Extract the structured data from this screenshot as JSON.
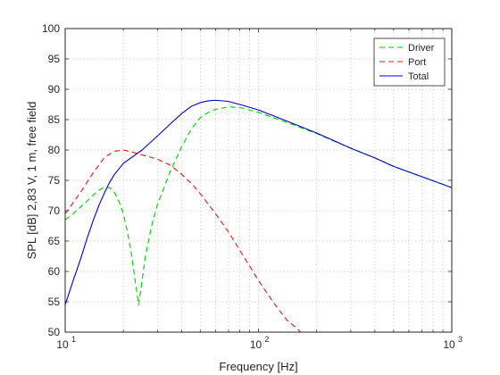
{
  "chart_data": {
    "type": "line",
    "xscale": "log",
    "xlim": [
      10,
      1000
    ],
    "ylim": [
      50,
      100
    ],
    "xlabel": "Frequency [Hz]",
    "ylabel": "SPL [dB] 2,83 V, 1 m, free field",
    "grid": "on (dotted, log minor on x)",
    "legend_position": "top-right",
    "x_ticks": [
      10,
      100,
      1000
    ],
    "x_tick_labels": {
      "base": "10",
      "exponents": [
        "1",
        "2",
        "3"
      ]
    },
    "y_ticks": [
      50,
      55,
      60,
      65,
      70,
      75,
      80,
      85,
      90,
      95,
      100
    ],
    "series": [
      {
        "name": "Driver",
        "color": "#00cc00",
        "style": "dashed",
        "points": [
          [
            10,
            68.5
          ],
          [
            11,
            69.5
          ],
          [
            12,
            70.6
          ],
          [
            13,
            71.6
          ],
          [
            14,
            72.6
          ],
          [
            15,
            73.4
          ],
          [
            16,
            73.9
          ],
          [
            17,
            73.8
          ],
          [
            18,
            73.0
          ],
          [
            19,
            71.5
          ],
          [
            20,
            69.5
          ],
          [
            21,
            66.5
          ],
          [
            22,
            63.0
          ],
          [
            23,
            58.5
          ],
          [
            24,
            54.5
          ],
          [
            25,
            58.5
          ],
          [
            26,
            62.5
          ],
          [
            28,
            67.5
          ],
          [
            30,
            71.0
          ],
          [
            35,
            76.5
          ],
          [
            40,
            80.5
          ],
          [
            45,
            83.5
          ],
          [
            50,
            85.3
          ],
          [
            55,
            86.2
          ],
          [
            60,
            86.7
          ],
          [
            70,
            87.1
          ],
          [
            80,
            87.0
          ],
          [
            100,
            86.2
          ],
          [
            120,
            85.3
          ],
          [
            150,
            84.2
          ],
          [
            200,
            82.7
          ],
          [
            300,
            80.3
          ],
          [
            400,
            78.7
          ],
          [
            500,
            77.3
          ],
          [
            700,
            75.6
          ],
          [
            1000,
            73.8
          ]
        ]
      },
      {
        "name": "Port",
        "color": "#ee1111",
        "style": "dashed",
        "points": [
          [
            10,
            69.5
          ],
          [
            12,
            73.0
          ],
          [
            14,
            76.3
          ],
          [
            16,
            78.8
          ],
          [
            18,
            79.8
          ],
          [
            20,
            80.0
          ],
          [
            22,
            79.7
          ],
          [
            25,
            79.2
          ],
          [
            30,
            78.5
          ],
          [
            35,
            77.5
          ],
          [
            40,
            76.0
          ],
          [
            45,
            74.5
          ],
          [
            50,
            72.8
          ],
          [
            60,
            69.5
          ],
          [
            70,
            66.5
          ],
          [
            80,
            63.5
          ],
          [
            100,
            58.5
          ],
          [
            120,
            54.8
          ],
          [
            140,
            52.0
          ],
          [
            160,
            50.5
          ],
          [
            170,
            49.5
          ]
        ]
      },
      {
        "name": "Total",
        "color": "#0000cc",
        "style": "solid",
        "points": [
          [
            10,
            54.5
          ],
          [
            11,
            58.5
          ],
          [
            12,
            62.0
          ],
          [
            13,
            65.5
          ],
          [
            14,
            68.5
          ],
          [
            15,
            71.0
          ],
          [
            16,
            73.0
          ],
          [
            17,
            74.7
          ],
          [
            18,
            76.0
          ],
          [
            20,
            77.8
          ],
          [
            25,
            80.0
          ],
          [
            30,
            82.3
          ],
          [
            35,
            84.3
          ],
          [
            40,
            86.0
          ],
          [
            45,
            87.2
          ],
          [
            50,
            87.8
          ],
          [
            55,
            88.1
          ],
          [
            60,
            88.2
          ],
          [
            70,
            88.0
          ],
          [
            80,
            87.5
          ],
          [
            100,
            86.6
          ],
          [
            120,
            85.6
          ],
          [
            150,
            84.4
          ],
          [
            200,
            82.8
          ],
          [
            300,
            80.3
          ],
          [
            400,
            78.7
          ],
          [
            500,
            77.3
          ],
          [
            700,
            75.6
          ],
          [
            1000,
            73.8
          ]
        ]
      }
    ]
  }
}
